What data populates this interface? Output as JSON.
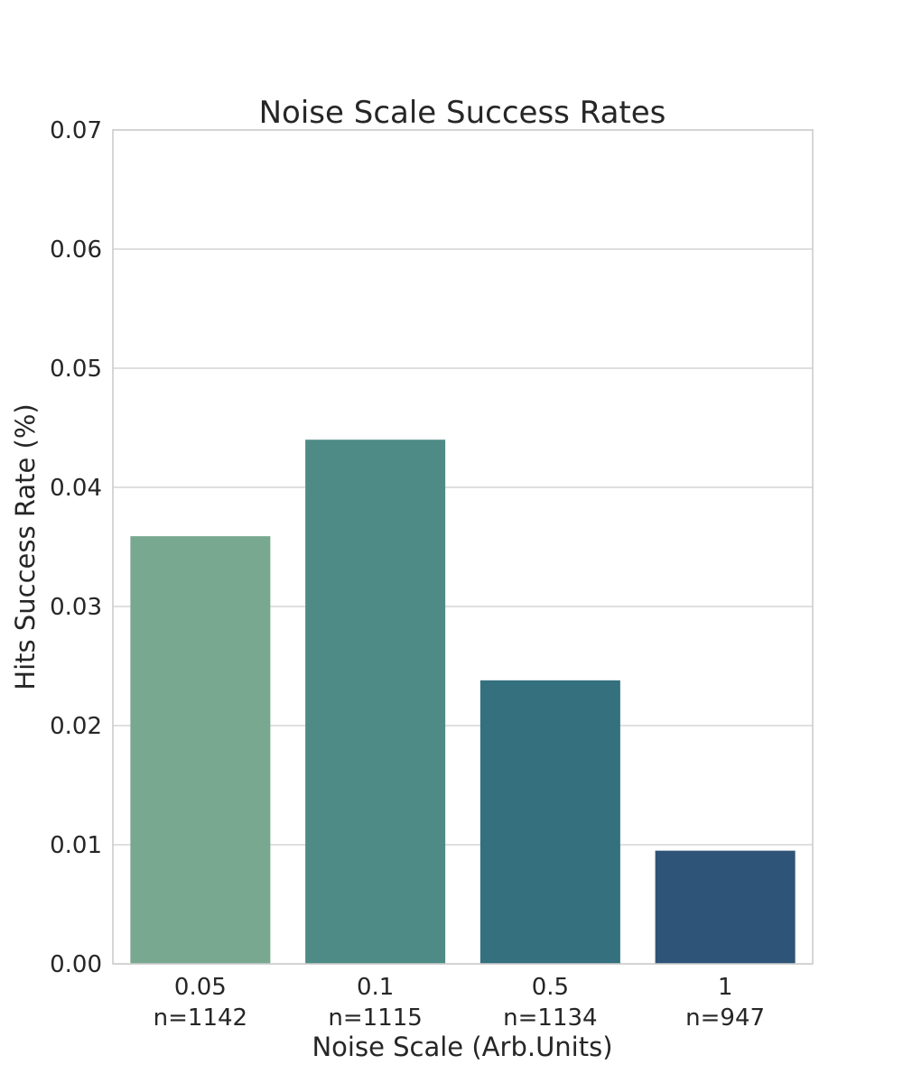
{
  "chart_data": {
    "type": "bar",
    "title": "Noise Scale Success Rates",
    "xlabel": "Noise Scale (Arb.Units)",
    "ylabel": "Hits Success Rate (%)",
    "categories": [
      "0.05",
      "0.1",
      "0.5",
      "1"
    ],
    "category_counts": [
      "n=1142",
      "n=1115",
      "n=1134",
      "n=947"
    ],
    "values": [
      0.0359,
      0.044,
      0.0238,
      0.0095
    ],
    "colors": [
      "#78a990",
      "#4f8b86",
      "#34707e",
      "#2e5478"
    ],
    "ylim": [
      0,
      0.07
    ],
    "yticks": [
      "0.00",
      "0.01",
      "0.02",
      "0.03",
      "0.04",
      "0.05",
      "0.06",
      "0.07"
    ],
    "grid": "horizontal",
    "legend": "none"
  }
}
